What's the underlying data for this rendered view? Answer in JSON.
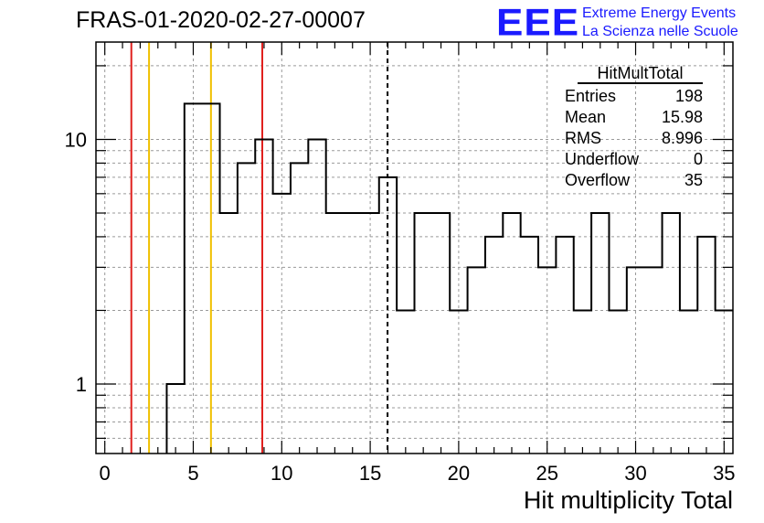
{
  "header": {
    "title": "FRAS-01-2020-02-27-00007",
    "logo_text": "EEE",
    "logo_line1": "Extreme Energy Events",
    "logo_line2": "La Scienza nelle Scuole"
  },
  "stats": {
    "name": "HitMultTotal",
    "rows": [
      {
        "label": "Entries",
        "value": "198"
      },
      {
        "label": "Mean",
        "value": "15.98"
      },
      {
        "label": "RMS",
        "value": "8.996"
      },
      {
        "label": "Underflow",
        "value": "0"
      },
      {
        "label": "Overflow",
        "value": "35"
      }
    ]
  },
  "colors": {
    "red_line": "#e0201e",
    "yellow_line": "#f0c000",
    "hist": "#000000",
    "grid": "#9a9a9a"
  },
  "chart_data": {
    "type": "step-histogram",
    "title": "FRAS-01-2020-02-27-00007",
    "xlabel": "Hit multiplicity Total",
    "ylabel": "",
    "log_y": true,
    "grid": true,
    "xlim": [
      -0.5,
      35.5
    ],
    "ylim": [
      0.52,
      25
    ],
    "bin_edges": [
      -0.5,
      0.5,
      1.5,
      2.5,
      3.5,
      4.5,
      5.5,
      6.5,
      7.5,
      8.5,
      9.5,
      10.5,
      11.5,
      12.5,
      13.5,
      14.5,
      15.5,
      16.5,
      17.5,
      18.5,
      19.5,
      20.5,
      21.5,
      22.5,
      23.5,
      24.5,
      25.5,
      26.5,
      27.5,
      28.5,
      29.5,
      30.5,
      31.5,
      32.5,
      33.5,
      34.5,
      35.5
    ],
    "counts": [
      0,
      0,
      0,
      0,
      1,
      14,
      14,
      5,
      8,
      10,
      6,
      8,
      10,
      5,
      5,
      5,
      7,
      2,
      5,
      5,
      2,
      3,
      4,
      5,
      4,
      3,
      4,
      2,
      5,
      2,
      3,
      3,
      5,
      2,
      4,
      2
    ],
    "x_ticks": [
      0,
      5,
      10,
      15,
      20,
      25,
      30,
      35
    ],
    "x_tick_labels": [
      "0",
      "5",
      "10",
      "15",
      "20",
      "25",
      "30",
      "35"
    ],
    "y_ticks": [
      1,
      10
    ],
    "y_tick_labels": [
      "1",
      "10"
    ],
    "vertical_lines": [
      {
        "x": 1.5,
        "color": "red"
      },
      {
        "x": 2.5,
        "color": "yellow"
      },
      {
        "x": 6.0,
        "color": "yellow"
      },
      {
        "x": 8.9,
        "color": "red"
      },
      {
        "x": 15.98,
        "color": "black",
        "style": "dashed"
      }
    ]
  }
}
